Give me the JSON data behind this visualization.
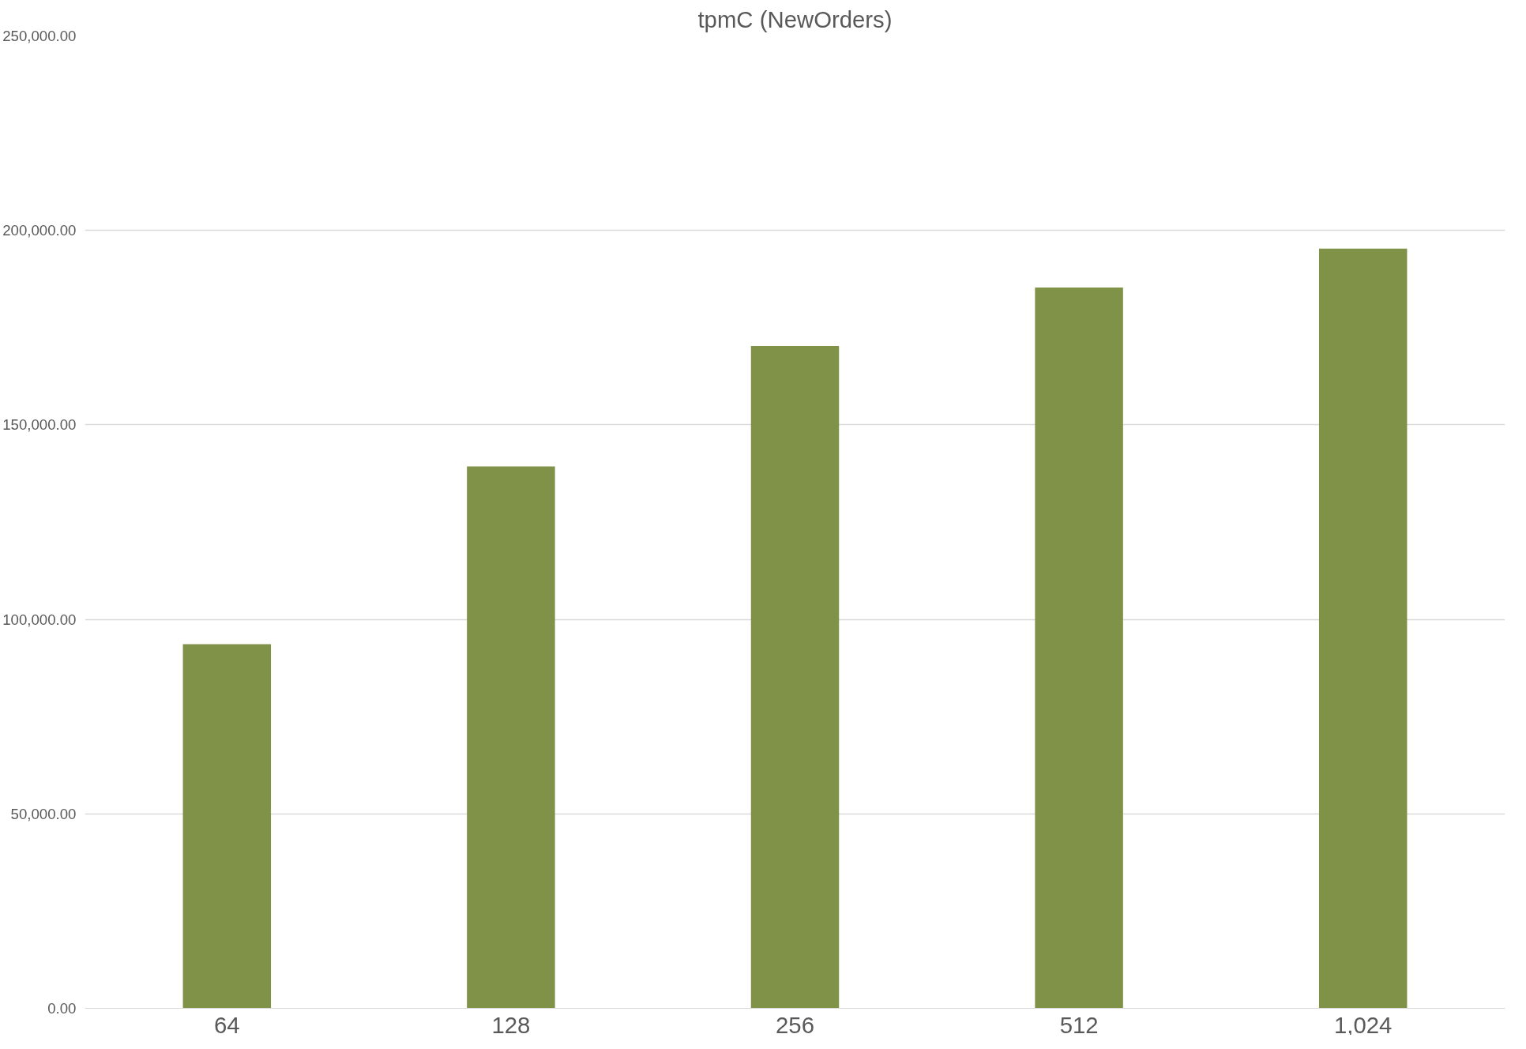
{
  "chart_data": {
    "type": "bar",
    "title": "tpmC (NewOrders)",
    "categories": [
      "64",
      "128",
      "256",
      "512",
      "1,024"
    ],
    "values": [
      93600,
      139300,
      170300,
      185300,
      195300
    ],
    "color": "#7f9248",
    "ylim": [
      0,
      250000
    ],
    "yticks": [
      {
        "value": 0,
        "label": "0.00"
      },
      {
        "value": 50000,
        "label": "50,000.00"
      },
      {
        "value": 100000,
        "label": "100,000.00"
      },
      {
        "value": 150000,
        "label": "150,000.00"
      },
      {
        "value": 200000,
        "label": "200,000.00"
      },
      {
        "value": 250000,
        "label": "250,000.00"
      }
    ],
    "grid": "y"
  }
}
